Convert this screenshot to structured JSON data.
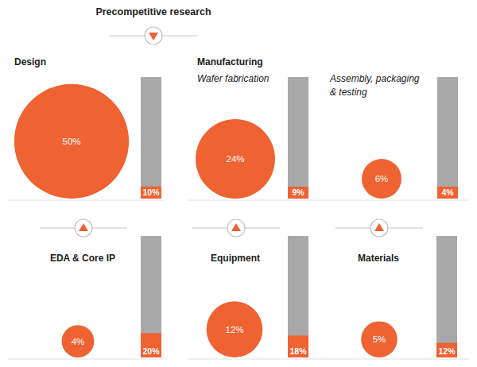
{
  "chart_data": {
    "type": "bubble_bar",
    "title": "Precompetitive research",
    "group_label": "Manufacturing",
    "categories": [
      "Design",
      "Wafer fabrication",
      "Assembly, packaging & testing",
      "EDA & Core IP",
      "Equipment",
      "Materials"
    ],
    "values": [
      50,
      24,
      6,
      4,
      12,
      5
    ],
    "value_labels": [
      "50%",
      "24%",
      "6%",
      "4%",
      "12%",
      "5%"
    ],
    "bar_values": [
      10,
      9,
      4,
      20,
      18,
      12
    ],
    "bar_value_labels": [
      "10%",
      "9%",
      "4%",
      "20%",
      "18%",
      "12%"
    ],
    "ylim": [
      0,
      100
    ],
    "tick_labels": false,
    "data_labels": true,
    "color": "#ef6232"
  }
}
